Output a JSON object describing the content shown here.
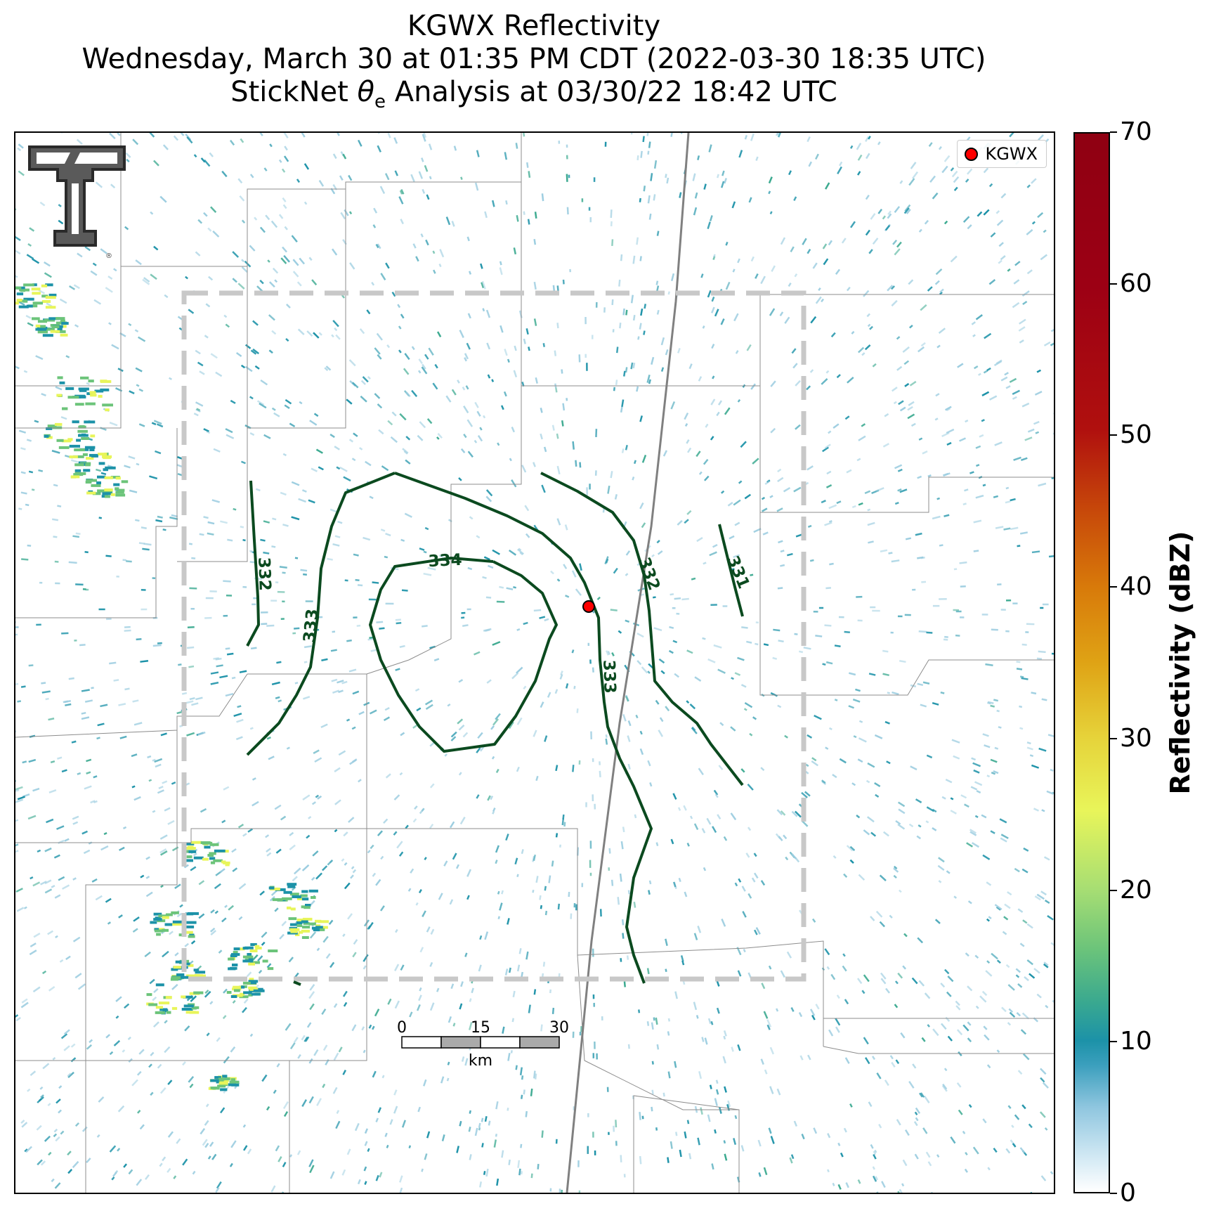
{
  "title": {
    "line1": "KGWX Reflectivity",
    "line2": "Wednesday, March 30 at 01:35 PM CDT (2022-03-30 18:35 UTC)",
    "line3_prefix": "StickNet",
    "line3_symbol": "θ",
    "line3_subscript": "e",
    "line3_suffix": "Analysis at 03/30/22 18:42 UTC"
  },
  "legend": {
    "label": "KGWX",
    "marker_color": "#ff0000"
  },
  "colorbar": {
    "title": "Reflectivity (dBZ)",
    "ticks": [
      "0",
      "10",
      "20",
      "30",
      "40",
      "50",
      "60",
      "70"
    ],
    "min": 0,
    "max": 70
  },
  "contours": {
    "color": "#0b4a1f",
    "labels": [
      "332",
      "333",
      "334",
      "332",
      "333",
      "331"
    ]
  },
  "scale_bar": {
    "ticks": [
      "0",
      "15",
      "30"
    ],
    "unit": "km"
  },
  "analysis_box": {
    "style": "dashed",
    "color": "#c8c8c8"
  },
  "colors": {
    "echo_light": "#9ccde0",
    "echo_mid": "#1c92a8",
    "echo_green": "#6cc47a",
    "echo_yellow": "#e8f55a",
    "radar_site": "#ff0000"
  }
}
